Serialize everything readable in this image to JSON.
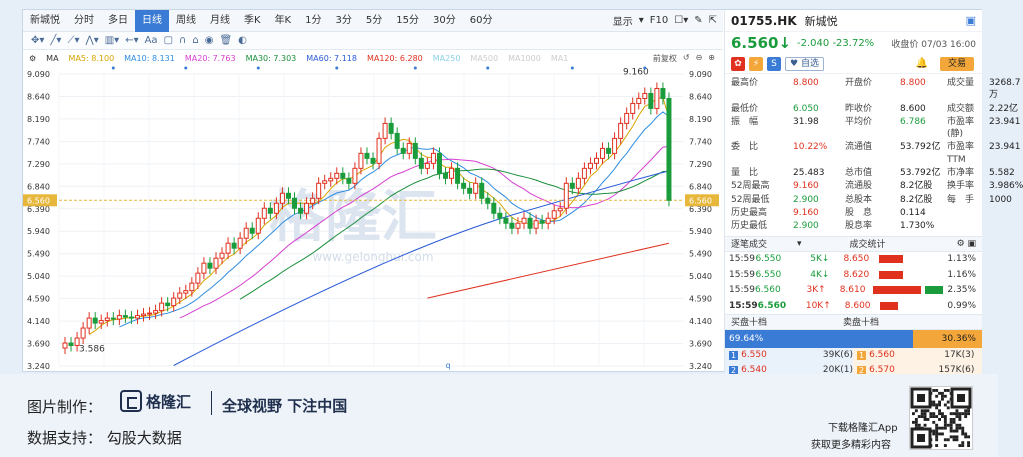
{
  "tabs": [
    "新城悦",
    "分时",
    "多日",
    "日线",
    "周线",
    "月线",
    "季K",
    "年K",
    "1分",
    "3分",
    "5分",
    "15分",
    "30分",
    "60分"
  ],
  "active_tab": "日线",
  "tabs_right": {
    "display": "显示",
    "f10": "F10"
  },
  "ma_row": {
    "ma_label": "MA",
    "items": [
      {
        "label": "MA5: 8.100",
        "color": "#d9a400"
      },
      {
        "label": "MA10: 8.131",
        "color": "#2e8de0"
      },
      {
        "label": "MA20: 7.763",
        "color": "#d63fd0"
      },
      {
        "label": "MA30: 7.303",
        "color": "#1b8f3a"
      },
      {
        "label": "MA60: 7.118",
        "color": "#2a5bd7"
      },
      {
        "label": "MA120: 6.280",
        "color": "#e0301e"
      },
      {
        "label": "MA250",
        "color": "#8bd0e8"
      },
      {
        "label": "MA500",
        "color": "#cccccc"
      },
      {
        "label": "MA1000",
        "color": "#cccccc"
      },
      {
        "label": "MA1",
        "color": "#cccccc"
      }
    ],
    "fq": "前复权"
  },
  "chart": {
    "y_ticks": [
      "9.090",
      "8.640",
      "8.190",
      "7.740",
      "7.290",
      "6.840",
      "6.390",
      "5.940",
      "5.490",
      "5.040",
      "4.590",
      "4.140",
      "3.690",
      "3.240"
    ],
    "last_label": "6.560",
    "high_label": "9.160",
    "low_label": "3.586",
    "watermark": "格隆汇",
    "watermark_url": "www.gelonghui.com",
    "bottom_marker": "q"
  },
  "chart_data": {
    "type": "candlestick",
    "ylim": [
      3.24,
      9.09
    ],
    "last_price": 6.56,
    "marked_high": 9.16,
    "marked_low": 3.586,
    "close": [
      3.7,
      3.65,
      3.8,
      4.0,
      4.2,
      4.1,
      4.15,
      4.2,
      4.18,
      4.25,
      4.22,
      4.2,
      4.25,
      4.28,
      4.3,
      4.35,
      4.5,
      4.45,
      4.6,
      4.7,
      4.75,
      4.9,
      5.1,
      5.3,
      5.2,
      5.4,
      5.5,
      5.7,
      5.6,
      5.8,
      6.0,
      5.9,
      6.2,
      6.4,
      6.3,
      6.5,
      6.7,
      6.6,
      6.4,
      6.3,
      6.5,
      6.6,
      6.9,
      6.95,
      7.0,
      7.1,
      7.0,
      6.9,
      7.2,
      7.5,
      7.4,
      7.3,
      7.8,
      8.1,
      7.9,
      7.6,
      7.5,
      7.7,
      7.4,
      7.2,
      7.3,
      7.5,
      7.1,
      7.0,
      7.2,
      6.9,
      6.8,
      6.7,
      6.9,
      6.6,
      6.5,
      6.3,
      6.2,
      6.1,
      6.0,
      6.1,
      6.2,
      6.0,
      6.15,
      6.1,
      6.2,
      6.35,
      6.4,
      6.9,
      6.8,
      7.0,
      7.2,
      7.3,
      7.4,
      7.6,
      7.5,
      7.8,
      8.1,
      8.3,
      8.5,
      8.6,
      8.7,
      8.4,
      8.8,
      8.6,
      6.56
    ],
    "open": [
      3.6,
      3.7,
      3.65,
      3.8,
      4.0,
      4.2,
      4.1,
      4.15,
      4.2,
      4.18,
      4.25,
      4.22,
      4.2,
      4.25,
      4.28,
      4.3,
      4.35,
      4.5,
      4.45,
      4.6,
      4.7,
      4.75,
      4.9,
      5.1,
      5.3,
      5.2,
      5.4,
      5.5,
      5.7,
      5.6,
      5.8,
      6.0,
      5.9,
      6.2,
      6.4,
      6.3,
      6.5,
      6.7,
      6.6,
      6.4,
      6.3,
      6.5,
      6.6,
      6.9,
      6.95,
      7.0,
      7.1,
      7.0,
      6.9,
      7.2,
      7.5,
      7.4,
      7.3,
      7.8,
      8.1,
      7.9,
      7.6,
      7.5,
      7.7,
      7.4,
      7.2,
      7.3,
      7.5,
      7.1,
      7.0,
      7.2,
      6.9,
      6.8,
      6.7,
      6.9,
      6.6,
      6.5,
      6.3,
      6.2,
      6.1,
      6.0,
      6.1,
      6.2,
      6.0,
      6.15,
      6.1,
      6.2,
      6.35,
      6.4,
      6.9,
      6.8,
      7.0,
      7.2,
      7.3,
      7.4,
      7.6,
      7.5,
      7.8,
      8.1,
      8.3,
      8.5,
      8.6,
      8.7,
      8.4,
      8.8,
      8.6
    ]
  },
  "panel": {
    "code": "01755.HK",
    "name": "新城悦",
    "price": "6.560",
    "change": "-2.040 -23.72%",
    "close_time": "收盘价 07/03 16:00",
    "add_fav": "自选",
    "trade": "交易",
    "stats": [
      [
        "最高价",
        "8.800",
        "red",
        "开盘价",
        "8.800",
        "red",
        "成交量",
        "3268.7万",
        "blk"
      ],
      [
        "最低价",
        "6.050",
        "grn",
        "昨收价",
        "8.600",
        "blk",
        "成交额",
        "2.22亿",
        "blk"
      ],
      [
        "振　幅",
        "31.98",
        "blk",
        "平均价",
        "6.786",
        "grn",
        "市盈率(静)",
        "23.941",
        "blk"
      ],
      [
        "委　比",
        "10.22%",
        "red",
        "流通值",
        "53.792亿",
        "blk",
        "市盈率TTM",
        "23.941",
        "blk"
      ],
      [
        "量　比",
        "25.483",
        "blk",
        "总市值",
        "53.792亿",
        "blk",
        "市净率",
        "5.582",
        "blk"
      ],
      [
        "52周最高",
        "9.160",
        "red",
        "流通股",
        "8.2亿股",
        "blk",
        "换手率",
        "3.986%",
        "blk"
      ],
      [
        "52周最低",
        "2.900",
        "grn",
        "总股本",
        "8.2亿股",
        "blk",
        "每　手",
        "1000",
        "blk"
      ],
      [
        "历史最高",
        "9.160",
        "red",
        "股　息",
        "0.114",
        "blk",
        "",
        ""
      ],
      [
        "历史最低",
        "2.900",
        "grn",
        "股息率",
        "1.730%",
        "blk",
        "",
        ""
      ]
    ],
    "trades_header": "逐笔成交",
    "stats_header": "成交统计",
    "trades": [
      {
        "time": "15:59",
        "price": "6.550",
        "vol": "5K",
        "dir": "down"
      },
      {
        "time": "15:59",
        "price": "6.550",
        "vol": "4K",
        "dir": "down"
      },
      {
        "time": "15:59",
        "price": "6.560",
        "vol": "3K",
        "dir": "up"
      },
      {
        "time": "15:59",
        "price": "6.560",
        "vol": "10K",
        "dir": "up"
      }
    ],
    "dist": [
      {
        "price": "8.650",
        "pct": "1.13%",
        "fill": 0.08
      },
      {
        "price": "8.620",
        "pct": "1.16%",
        "fill": 0.08
      },
      {
        "price": "8.610",
        "pct": "2.35%",
        "fill": 0.16
      },
      {
        "price": "8.600",
        "pct": "0.99%",
        "fill": 0.06
      }
    ],
    "buy_header": "买盘十档",
    "sell_header": "卖盘十档",
    "buy_ratio": "69.64%",
    "sell_ratio": "30.36%",
    "book": [
      {
        "bnum": "1",
        "bp": "6.550",
        "bv": "39K(",
        "bc": "6)",
        "snum": "1",
        "sp": "6.560",
        "sv": "17K(",
        "sc": "3)"
      },
      {
        "bnum": "2",
        "bp": "6.540",
        "bv": "20K(",
        "bc": "1)",
        "snum": "2",
        "sp": "6.570",
        "sv": "157K(",
        "sc": "6)"
      }
    ]
  },
  "footer": {
    "made_by": "图片制作：",
    "logo": "格隆汇",
    "slogan": "全球视野 下注中国",
    "data_support": "数据支持：  勾股大数据",
    "dl1": "下载格隆汇App",
    "dl2": "获取更多精彩内容"
  }
}
